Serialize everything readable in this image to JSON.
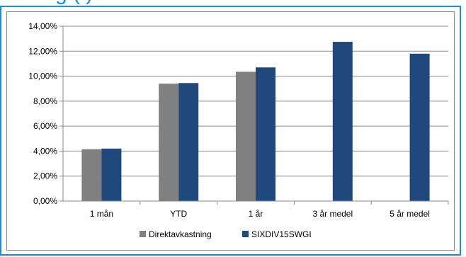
{
  "page_heading_fragment": "g (       )",
  "chart_data": {
    "type": "bar",
    "categories": [
      "1 mån",
      "YTD",
      "1 år",
      "3 år medel",
      "5 år medel"
    ],
    "series": [
      {
        "name": "Direktavkastning",
        "values": [
          4.15,
          9.4,
          10.35,
          null,
          null
        ],
        "color": "#808080"
      },
      {
        "name": "SIXDIV15SWGI",
        "values": [
          4.2,
          9.45,
          10.7,
          12.75,
          11.8
        ],
        "color": "#1f497d"
      }
    ],
    "ylim": [
      0,
      14
    ],
    "ytick_step": 2,
    "ytick_labels": [
      "0,00%",
      "2,00%",
      "4,00%",
      "6,00%",
      "8,00%",
      "10,00%",
      "12,00%",
      "14,00%"
    ],
    "grid": true,
    "legend_position": "bottom"
  }
}
